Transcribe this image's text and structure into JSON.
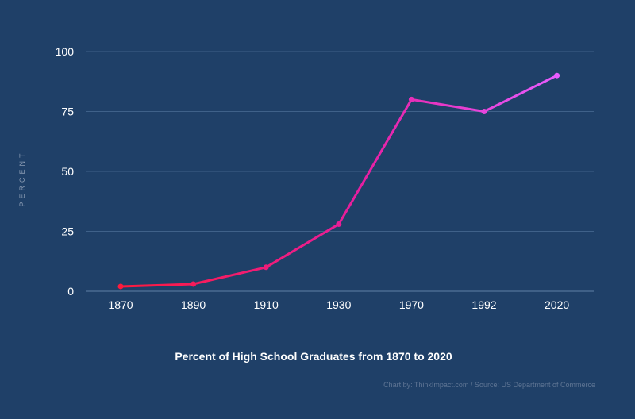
{
  "chart_data": {
    "type": "line",
    "title": "Percent of High School Graduates from 1870 to 2020",
    "xlabel": "",
    "ylabel": "PERCENT",
    "categories": [
      "1870",
      "1890",
      "1910",
      "1930",
      "1970",
      "1992",
      "2020"
    ],
    "series": [
      {
        "values": [
          2,
          3,
          10,
          28,
          80,
          75,
          90
        ]
      }
    ],
    "ylim": [
      0,
      100
    ],
    "yticks": [
      "0",
      "25",
      "50",
      "75",
      "100"
    ],
    "grid": true,
    "line_gradient": [
      "#ff1a3c",
      "#e61ea0",
      "#e85cff"
    ],
    "grid_color": "#3f6189",
    "credit": "Chart by: ThinkImpact.com / Source: US Department of Commerce"
  }
}
